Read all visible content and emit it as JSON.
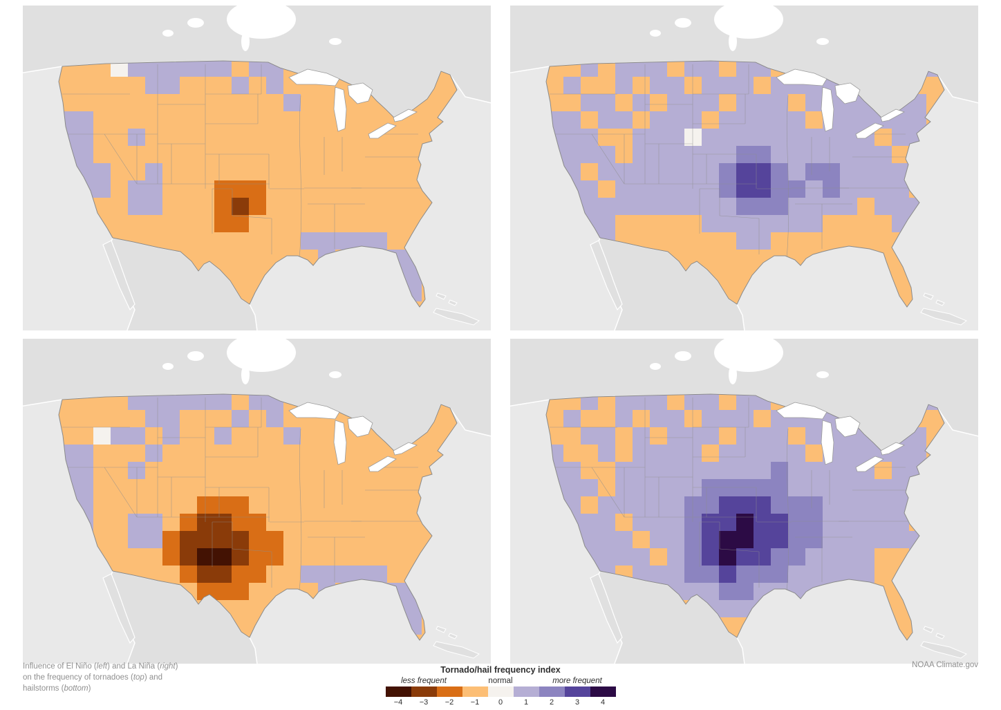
{
  "figure": {
    "credit": "NOAA Climate.gov",
    "caption": {
      "segments": [
        {
          "text": "Influence of El Niño ("
        },
        {
          "text": "left",
          "italic": true
        },
        {
          "text": ") and La Niña ("
        },
        {
          "text": "right",
          "italic": true
        },
        {
          "text": ")\non the frequency of tornadoes ("
        },
        {
          "text": "top",
          "italic": true
        },
        {
          "text": ") and\nhailstorms ("
        },
        {
          "text": "bottom",
          "italic": true
        },
        {
          "text": ")"
        }
      ]
    }
  },
  "legend": {
    "title": "Tornado/hail frequency index",
    "less_label": "less frequent",
    "normal_label": "normal",
    "more_label": "more frequent",
    "ticks": [
      "−4",
      "−3",
      "−2",
      "−1",
      "0",
      "1",
      "2",
      "3",
      "4"
    ]
  },
  "chart_data": {
    "type": "heatmap",
    "title": "Tornado/hail frequency index",
    "description": "Influence of El Niño (left) and La Niña (right) on the frequency of tornadoes (top) and hailstorms (bottom); gridded index values over the contiguous United States",
    "value_range": [
      -4,
      4
    ],
    "tick_labels": [
      "−4",
      "−3",
      "−2",
      "−1",
      "0",
      "1",
      "2",
      "3",
      "4"
    ],
    "colors": [
      "#431203",
      "#8a3b09",
      "#d96e16",
      "#fcbe75",
      "#f5f2ee",
      "#b5aed4",
      "#8c84c0",
      "#55449b",
      "#2c0b45"
    ],
    "cell_encoding": "each character = index value + 4 (0 means -4 ... 8 means +4); 15 rows north to south, 24 columns west to east; cells are clipped to the U.S. outline",
    "panels": [
      {
        "id": "el-nino-tornadoes",
        "phase": "El Niño",
        "hazard": "tornadoes",
        "position": "top-left",
        "grid": [
          "333455555535533333333333",
          "333335533353533333333333",
          "333333333333353333333333",
          "553333333333333333333333",
          "553353333333333333333333",
          "553333333333333333333333",
          "555335333333333333333333",
          "555355333222333333333333",
          "333355333212333333333333",
          "333333333223333333333333",
          "333333333333335555533333",
          "333333333333333533355333",
          "333333333333333333355333",
          "333333333333333333335333",
          "333333333333333333333333"
        ]
      },
      {
        "id": "la-nina-tornadoes",
        "phase": "La Niña",
        "hazard": "tornadoes",
        "position": "top-right",
        "grid": [
          "335355535535535533553355",
          "353353553555355553555335",
          "335535355535553555535533",
          "553553555355555355555535",
          "555335554555555555535555",
          "555535555556655555553555",
          "553555555567765665555555",
          "555355555567766565555355",
          "555555555556665555355555",
          "555533333555555533335555",
          "555533333335533333333555",
          "555533333333333333333355",
          "333333333333333333333355",
          "333333333333333333333333",
          "333333333333333333333333"
        ]
      },
      {
        "id": "el-nino-hailstorms",
        "phase": "El Niño",
        "hazard": "hailstorms",
        "position": "bottom-left",
        "grid": [
          "333355555535533333333333",
          "333335533353533333333333",
          "334553533533353333333333",
          "553335333333333333333333",
          "553353333333333333333333",
          "553333333333333333333333",
          "553333332223333333333333",
          "553355321122333333333333",
          "333355211112233333333333",
          "333333210012233333333333",
          "333333321122335555533333",
          "333333332223333533355333",
          "333333333333333333355333",
          "333333333333333333335333",
          "333333333333333333333333"
        ]
      },
      {
        "id": "la-nina-hailstorms",
        "phase": "La Niña",
        "hazard": "hailstorms",
        "position": "bottom-right",
        "grid": [
          "335355535535535533553355",
          "353353553555355553555335",
          "335535355535553555535533",
          "533535555355555355555535",
          "553355555555565555535555",
          "555355555666665555555535",
          "553555556677766655555555",
          "555535556778776655555355",
          "555553556788776655555555",
          "555555356787766555533555",
          "555535556676665555533555",
          "555533555566555553333355",
          "555555333555555533333355",
          "333333353333333333333333",
          "333333333333333333333333"
        ]
      }
    ]
  }
}
